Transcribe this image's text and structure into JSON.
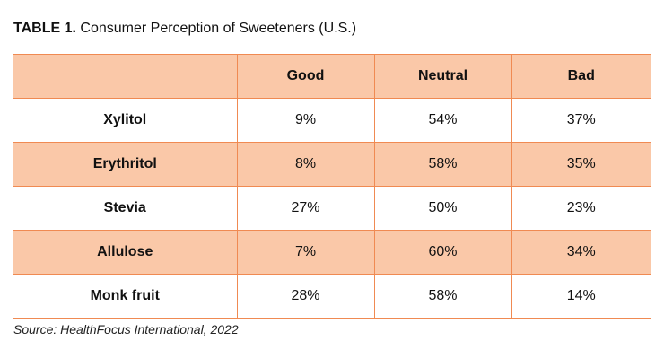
{
  "chart_data": {
    "type": "table",
    "title_label": "TABLE 1.",
    "title": "Consumer Perception of Sweeteners (U.S.)",
    "corner": "",
    "columns": [
      "Good",
      "Neutral",
      "Bad"
    ],
    "rows": [
      {
        "name": "Xylitol",
        "values": [
          "9%",
          "54%",
          "37%"
        ]
      },
      {
        "name": "Erythritol",
        "values": [
          "8%",
          "58%",
          "35%"
        ]
      },
      {
        "name": "Stevia",
        "values": [
          "27%",
          "50%",
          "23%"
        ]
      },
      {
        "name": "Allulose",
        "values": [
          "7%",
          "60%",
          "34%"
        ]
      },
      {
        "name": "Monk fruit",
        "values": [
          "28%",
          "58%",
          "14%"
        ]
      }
    ],
    "source": "Source: HealthFocus International, 2022",
    "colors": {
      "header_fill": "#fac8a8",
      "stripe_fill": "#fac8a8",
      "rule": "#f08a52"
    }
  }
}
